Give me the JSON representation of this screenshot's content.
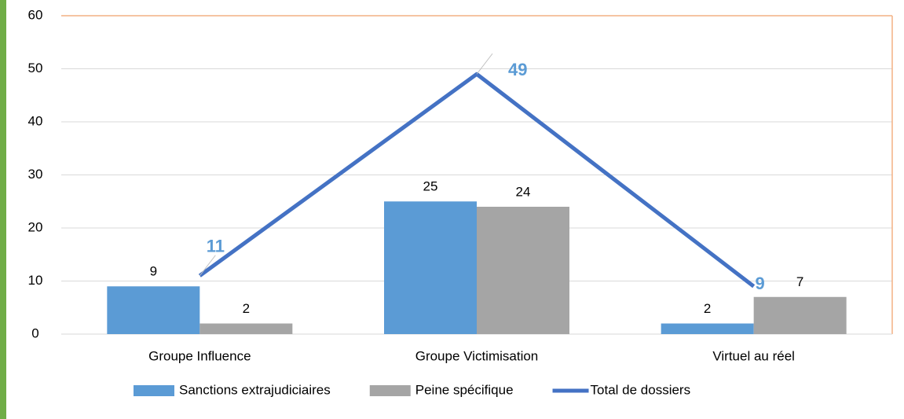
{
  "chart_data": {
    "type": "bar",
    "categories": [
      "Groupe Influence",
      "Groupe Victimisation",
      "Virtuel au réel"
    ],
    "series": [
      {
        "name": "Sanctions extrajudiciaires",
        "color": "#5b9bd5",
        "values": [
          9,
          25,
          2
        ]
      },
      {
        "name": "Peine spécifique",
        "color": "#a5a5a5",
        "values": [
          2,
          24,
          7
        ]
      },
      {
        "name": "Total de dossiers",
        "type": "line",
        "color": "#4472c4",
        "values": [
          11,
          49,
          9
        ]
      }
    ],
    "ylim": [
      0,
      60
    ],
    "yticks": [
      0,
      10,
      20,
      30,
      40,
      50,
      60
    ],
    "grid": true,
    "legend": "bottom"
  }
}
